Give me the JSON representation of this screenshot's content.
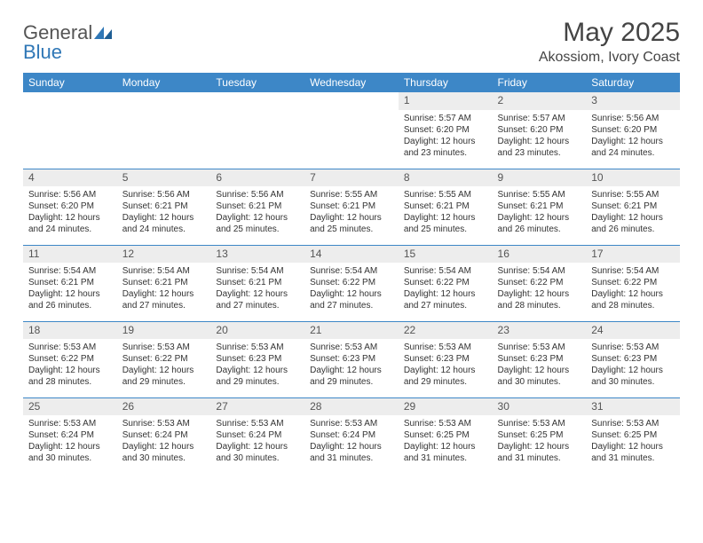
{
  "brand": {
    "word1": "General",
    "word2": "Blue"
  },
  "title": "May 2025",
  "location": "Akossiom, Ivory Coast",
  "colors": {
    "header_bg": "#3d87c7",
    "header_fg": "#ffffff",
    "rule": "#3d87c7",
    "daynum_bg": "#ededed",
    "text": "#333333",
    "brand_gray": "#555555",
    "brand_blue": "#2f77b6"
  },
  "day_headers": [
    "Sunday",
    "Monday",
    "Tuesday",
    "Wednesday",
    "Thursday",
    "Friday",
    "Saturday"
  ],
  "weeks": [
    [
      null,
      null,
      null,
      null,
      {
        "n": "1",
        "sr": "5:57 AM",
        "ss": "6:20 PM",
        "dl": "12 hours and 23 minutes."
      },
      {
        "n": "2",
        "sr": "5:57 AM",
        "ss": "6:20 PM",
        "dl": "12 hours and 23 minutes."
      },
      {
        "n": "3",
        "sr": "5:56 AM",
        "ss": "6:20 PM",
        "dl": "12 hours and 24 minutes."
      }
    ],
    [
      {
        "n": "4",
        "sr": "5:56 AM",
        "ss": "6:20 PM",
        "dl": "12 hours and 24 minutes."
      },
      {
        "n": "5",
        "sr": "5:56 AM",
        "ss": "6:21 PM",
        "dl": "12 hours and 24 minutes."
      },
      {
        "n": "6",
        "sr": "5:56 AM",
        "ss": "6:21 PM",
        "dl": "12 hours and 25 minutes."
      },
      {
        "n": "7",
        "sr": "5:55 AM",
        "ss": "6:21 PM",
        "dl": "12 hours and 25 minutes."
      },
      {
        "n": "8",
        "sr": "5:55 AM",
        "ss": "6:21 PM",
        "dl": "12 hours and 25 minutes."
      },
      {
        "n": "9",
        "sr": "5:55 AM",
        "ss": "6:21 PM",
        "dl": "12 hours and 26 minutes."
      },
      {
        "n": "10",
        "sr": "5:55 AM",
        "ss": "6:21 PM",
        "dl": "12 hours and 26 minutes."
      }
    ],
    [
      {
        "n": "11",
        "sr": "5:54 AM",
        "ss": "6:21 PM",
        "dl": "12 hours and 26 minutes."
      },
      {
        "n": "12",
        "sr": "5:54 AM",
        "ss": "6:21 PM",
        "dl": "12 hours and 27 minutes."
      },
      {
        "n": "13",
        "sr": "5:54 AM",
        "ss": "6:21 PM",
        "dl": "12 hours and 27 minutes."
      },
      {
        "n": "14",
        "sr": "5:54 AM",
        "ss": "6:22 PM",
        "dl": "12 hours and 27 minutes."
      },
      {
        "n": "15",
        "sr": "5:54 AM",
        "ss": "6:22 PM",
        "dl": "12 hours and 27 minutes."
      },
      {
        "n": "16",
        "sr": "5:54 AM",
        "ss": "6:22 PM",
        "dl": "12 hours and 28 minutes."
      },
      {
        "n": "17",
        "sr": "5:54 AM",
        "ss": "6:22 PM",
        "dl": "12 hours and 28 minutes."
      }
    ],
    [
      {
        "n": "18",
        "sr": "5:53 AM",
        "ss": "6:22 PM",
        "dl": "12 hours and 28 minutes."
      },
      {
        "n": "19",
        "sr": "5:53 AM",
        "ss": "6:22 PM",
        "dl": "12 hours and 29 minutes."
      },
      {
        "n": "20",
        "sr": "5:53 AM",
        "ss": "6:23 PM",
        "dl": "12 hours and 29 minutes."
      },
      {
        "n": "21",
        "sr": "5:53 AM",
        "ss": "6:23 PM",
        "dl": "12 hours and 29 minutes."
      },
      {
        "n": "22",
        "sr": "5:53 AM",
        "ss": "6:23 PM",
        "dl": "12 hours and 29 minutes."
      },
      {
        "n": "23",
        "sr": "5:53 AM",
        "ss": "6:23 PM",
        "dl": "12 hours and 30 minutes."
      },
      {
        "n": "24",
        "sr": "5:53 AM",
        "ss": "6:23 PM",
        "dl": "12 hours and 30 minutes."
      }
    ],
    [
      {
        "n": "25",
        "sr": "5:53 AM",
        "ss": "6:24 PM",
        "dl": "12 hours and 30 minutes."
      },
      {
        "n": "26",
        "sr": "5:53 AM",
        "ss": "6:24 PM",
        "dl": "12 hours and 30 minutes."
      },
      {
        "n": "27",
        "sr": "5:53 AM",
        "ss": "6:24 PM",
        "dl": "12 hours and 30 minutes."
      },
      {
        "n": "28",
        "sr": "5:53 AM",
        "ss": "6:24 PM",
        "dl": "12 hours and 31 minutes."
      },
      {
        "n": "29",
        "sr": "5:53 AM",
        "ss": "6:25 PM",
        "dl": "12 hours and 31 minutes."
      },
      {
        "n": "30",
        "sr": "5:53 AM",
        "ss": "6:25 PM",
        "dl": "12 hours and 31 minutes."
      },
      {
        "n": "31",
        "sr": "5:53 AM",
        "ss": "6:25 PM",
        "dl": "12 hours and 31 minutes."
      }
    ]
  ],
  "labels": {
    "sunrise": "Sunrise:",
    "sunset": "Sunset:",
    "daylight": "Daylight:"
  }
}
